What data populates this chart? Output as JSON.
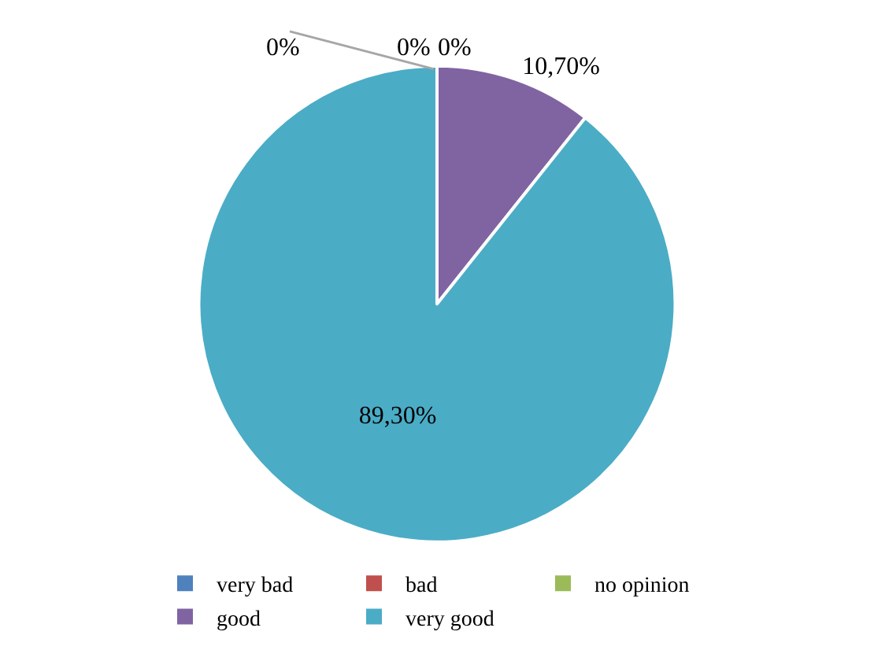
{
  "chart_data": {
    "type": "pie",
    "categories": [
      "very bad",
      "bad",
      "no opinion",
      "good",
      "very good"
    ],
    "values": [
      0,
      0,
      0,
      10.7,
      89.3
    ],
    "colors": [
      "#4f81bd",
      "#c0504d",
      "#9bbb59",
      "#8064a2",
      "#4bacc6"
    ],
    "value_labels": [
      "0%",
      "0%",
      "0%",
      "10,70%",
      "89,30%"
    ],
    "legend": "bottom"
  }
}
